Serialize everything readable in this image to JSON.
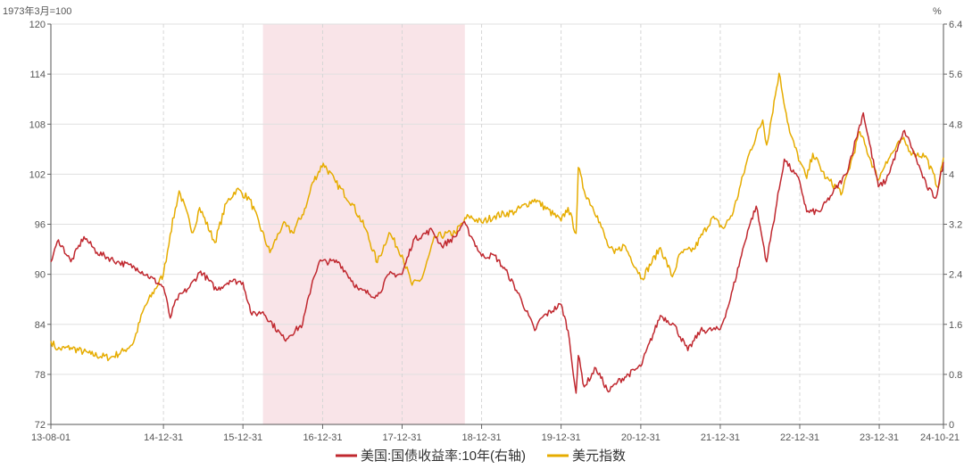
{
  "chart_data": {
    "type": "line",
    "left_unit": "1973年3月=100",
    "right_unit": "%",
    "x_tick_labels": [
      "13-08-01",
      "14-12-31",
      "15-12-31",
      "16-12-31",
      "17-12-31",
      "18-12-31",
      "19-12-31",
      "20-12-31",
      "21-12-31",
      "22-12-31",
      "23-12-31",
      "24-10-21"
    ],
    "x_tick_dates": [
      "2013-08-01",
      "2014-12-31",
      "2015-12-31",
      "2016-12-31",
      "2017-12-31",
      "2018-12-31",
      "2019-12-31",
      "2020-12-31",
      "2021-12-31",
      "2022-12-31",
      "2023-12-31",
      "2024-10-21"
    ],
    "y_left_ticks": [
      72,
      78,
      84,
      90,
      96,
      102,
      108,
      114,
      120
    ],
    "y_left_tick_labels": [
      "72",
      "78",
      "84",
      "90",
      "96",
      "102",
      "108",
      "114",
      "120"
    ],
    "y_left_range": [
      72,
      120
    ],
    "y_right_ticks": [
      0,
      0.8,
      1.6,
      2.4,
      3.2,
      4,
      4.8,
      5.6,
      6.4
    ],
    "y_right_tick_labels": [
      "0",
      "0.8",
      "1.6",
      "2.4",
      "3.2",
      "4",
      "4.8",
      "5.6",
      "6.4"
    ],
    "y_right_range": [
      0,
      6.4
    ],
    "shaded_region": [
      "2016-04-01",
      "2018-10-15"
    ],
    "grid": true,
    "legend_position": "bottom",
    "series": [
      {
        "name": "美国:国债收益率:10年(右轴)",
        "axis": "right",
        "color": "#c0282f",
        "x": [
          "2013-08-01",
          "2013-09-05",
          "2013-11-01",
          "2013-12-31",
          "2014-03-01",
          "2014-06-01",
          "2014-09-01",
          "2014-12-31",
          "2015-01-31",
          "2015-03-01",
          "2015-05-01",
          "2015-06-20",
          "2015-09-01",
          "2015-11-01",
          "2015-12-31",
          "2016-02-10",
          "2016-04-01",
          "2016-07-08",
          "2016-09-30",
          "2016-11-15",
          "2016-12-15",
          "2017-03-14",
          "2017-06-15",
          "2017-09-08",
          "2017-11-01",
          "2017-12-31",
          "2018-02-21",
          "2018-05-17",
          "2018-07-01",
          "2018-09-01",
          "2018-10-08",
          "2018-11-15",
          "2018-12-31",
          "2019-03-01",
          "2019-05-01",
          "2019-07-01",
          "2019-09-01",
          "2019-10-01",
          "2019-12-31",
          "2020-02-01",
          "2020-03-09",
          "2020-03-19",
          "2020-04-15",
          "2020-06-08",
          "2020-08-04",
          "2020-09-15",
          "2020-12-31",
          "2021-03-31",
          "2021-06-01",
          "2021-08-04",
          "2021-10-01",
          "2021-12-31",
          "2022-02-15",
          "2022-05-06",
          "2022-06-14",
          "2022-08-01",
          "2022-10-21",
          "2022-12-31",
          "2023-02-01",
          "2023-04-01",
          "2023-06-01",
          "2023-08-01",
          "2023-10-19",
          "2023-12-27",
          "2024-02-01",
          "2024-04-25",
          "2024-06-01",
          "2024-08-05",
          "2024-09-16",
          "2024-10-21"
        ],
        "values": [
          2.6,
          2.95,
          2.6,
          3.0,
          2.75,
          2.6,
          2.5,
          2.2,
          1.7,
          2.0,
          2.2,
          2.45,
          2.15,
          2.3,
          2.27,
          1.75,
          1.8,
          1.36,
          1.6,
          2.3,
          2.6,
          2.6,
          2.15,
          2.05,
          2.4,
          2.4,
          2.95,
          3.11,
          2.85,
          3.0,
          3.23,
          3.0,
          2.69,
          2.7,
          2.4,
          2.0,
          1.5,
          1.7,
          1.92,
          1.5,
          0.5,
          1.1,
          0.6,
          0.9,
          0.52,
          0.68,
          0.93,
          1.74,
          1.6,
          1.18,
          1.5,
          1.52,
          2.0,
          3.1,
          3.49,
          2.6,
          4.24,
          3.88,
          3.4,
          3.4,
          3.7,
          4.0,
          4.98,
          3.8,
          3.9,
          4.7,
          4.4,
          3.8,
          3.62,
          4.19
        ]
      },
      {
        "name": "美元指数",
        "axis": "left",
        "color": "#e6ac00",
        "x": [
          "2013-08-01",
          "2013-09-01",
          "2013-11-01",
          "2014-02-01",
          "2014-05-01",
          "2014-07-01",
          "2014-08-15",
          "2014-10-01",
          "2014-12-31",
          "2015-01-31",
          "2015-03-13",
          "2015-05-15",
          "2015-06-15",
          "2015-08-24",
          "2015-10-15",
          "2015-12-02",
          "2016-01-31",
          "2016-05-03",
          "2016-07-01",
          "2016-08-15",
          "2016-10-15",
          "2016-11-15",
          "2017-01-03",
          "2017-03-01",
          "2017-05-15",
          "2017-07-15",
          "2017-09-08",
          "2017-11-01",
          "2017-12-31",
          "2018-02-15",
          "2018-04-01",
          "2018-06-01",
          "2018-09-01",
          "2018-11-01",
          "2018-12-31",
          "2019-03-01",
          "2019-06-01",
          "2019-09-01",
          "2019-12-31",
          "2020-02-01",
          "2020-03-09",
          "2020-03-19",
          "2020-04-15",
          "2020-06-15",
          "2020-08-01",
          "2020-09-01",
          "2020-10-15",
          "2021-01-06",
          "2021-03-31",
          "2021-05-25",
          "2021-07-01",
          "2021-09-01",
          "2021-11-24",
          "2022-01-15",
          "2022-03-01",
          "2022-05-13",
          "2022-07-14",
          "2022-08-01",
          "2022-09-27",
          "2022-11-15",
          "2023-01-01",
          "2023-02-01",
          "2023-03-01",
          "2023-05-01",
          "2023-07-14",
          "2023-10-03",
          "2023-12-27",
          "2024-01-31",
          "2024-04-16",
          "2024-06-01",
          "2024-07-31",
          "2024-09-27",
          "2024-10-21"
        ],
        "values": [
          82,
          81,
          81.2,
          80.4,
          80,
          80.8,
          81.8,
          85.8,
          90,
          94.8,
          100,
          95,
          98,
          93.8,
          98.5,
          100.2,
          99,
          92.6,
          96,
          95,
          98,
          101,
          103.3,
          101,
          98.5,
          95.5,
          91.4,
          95,
          92.3,
          88.7,
          89.5,
          94.5,
          95,
          97,
          96.2,
          97,
          97.5,
          99,
          96.4,
          98,
          94.9,
          102.8,
          100,
          97,
          93.5,
          92.5,
          93.5,
          89.5,
          93.2,
          89.7,
          92.5,
          93,
          96.8,
          95.5,
          97.5,
          104.5,
          108.5,
          105.5,
          114.1,
          107,
          103.5,
          101.5,
          104.5,
          101.5,
          99.8,
          107.1,
          101.3,
          103.5,
          106.2,
          104.5,
          104.2,
          100.4,
          104
        ]
      }
    ]
  }
}
